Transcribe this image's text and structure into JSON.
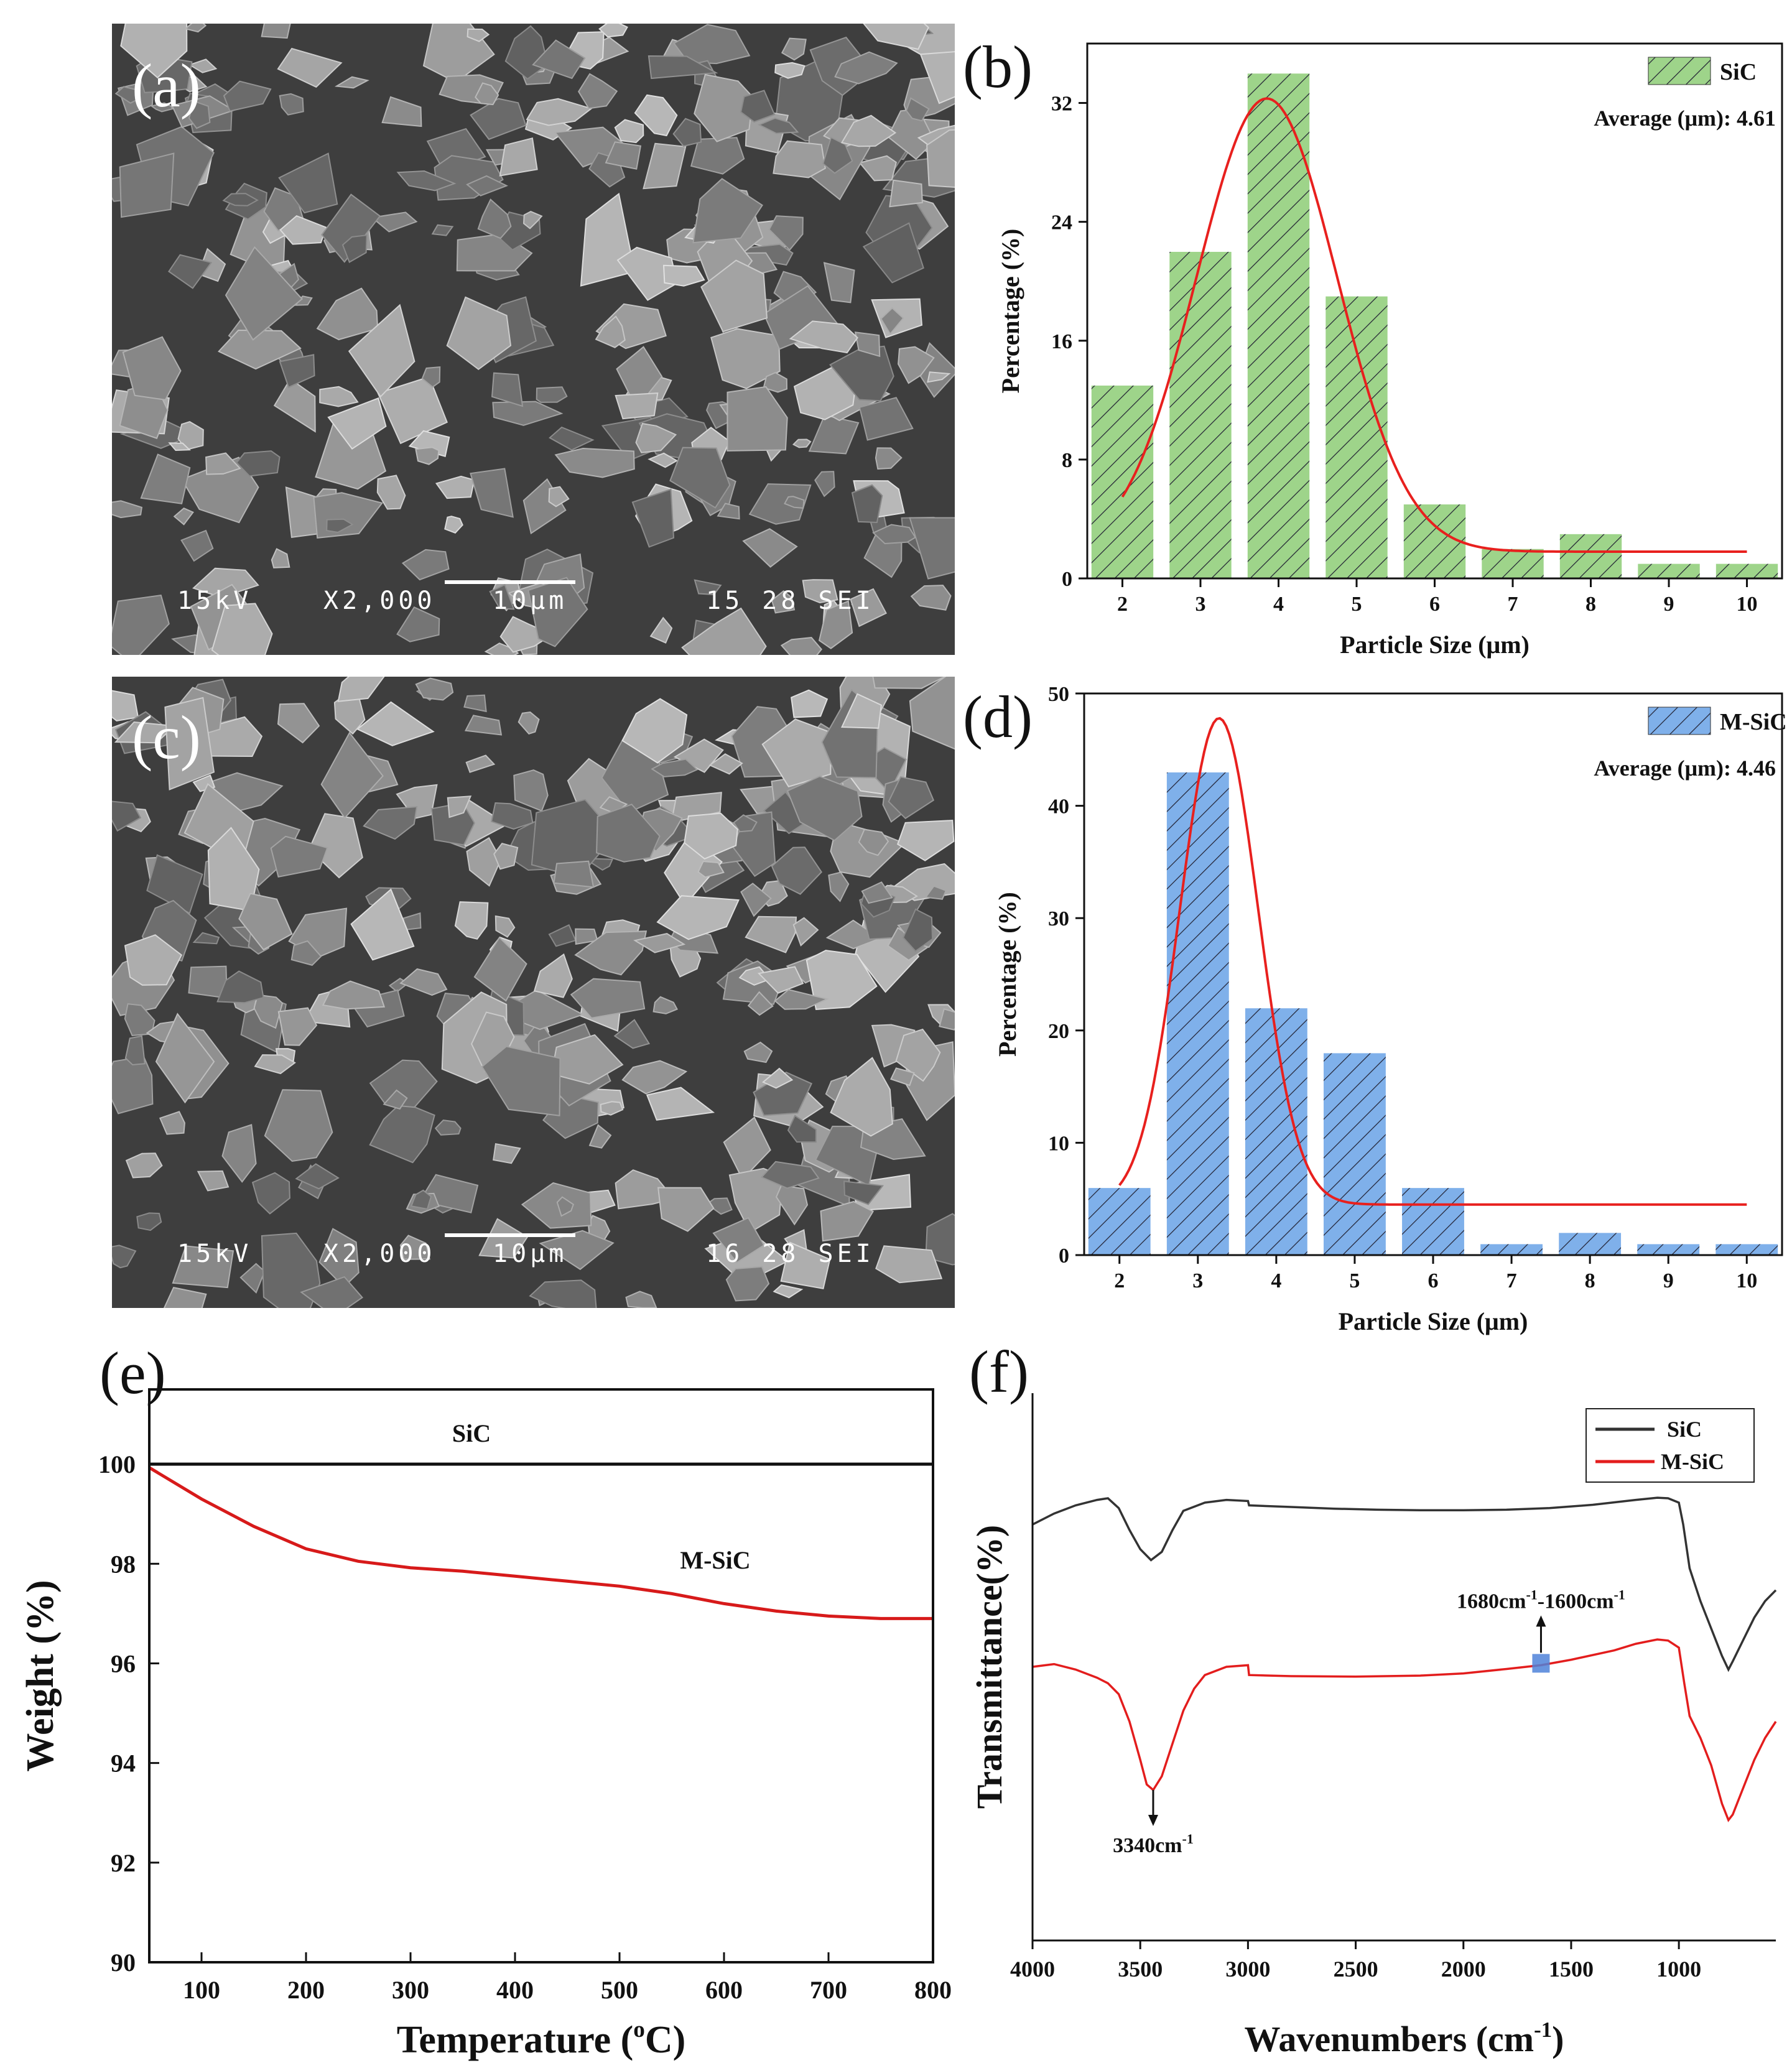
{
  "panels": {
    "a": {
      "label": "(a)",
      "voltage": "15kV",
      "magnification": "X2,000",
      "scale_bar": "10μm",
      "info": "15 28 SEI"
    },
    "c": {
      "label": "(c)",
      "voltage": "15kV",
      "magnification": "X2,000",
      "scale_bar": "10μm",
      "info": "16 28 SEI"
    }
  },
  "chart_data": [
    {
      "id": "b",
      "panel_label": "(b)",
      "type": "bar",
      "categories": [
        "2",
        "3",
        "4",
        "5",
        "6",
        "7",
        "8",
        "9",
        "10"
      ],
      "x": [
        2,
        3,
        4,
        5,
        6,
        7,
        8,
        9,
        10
      ],
      "values": [
        13,
        22,
        34,
        19,
        5,
        2,
        3,
        1,
        1
      ],
      "series_name": "SiC",
      "annotation": "Average (μm): 4.61",
      "xlabel": "Particle Size (μm)",
      "ylabel": "Percentage (%)",
      "ylim": [
        0,
        36
      ],
      "yticks": [
        0,
        8,
        16,
        24,
        32
      ],
      "fit": {
        "type": "gaussian",
        "y0": 1.8,
        "A": 30.5,
        "xc": 3.85,
        "sigma": 0.9,
        "x_from": 2,
        "x_to": 10
      },
      "bar_color": "#9ed48a",
      "fit_color": "#e8201e"
    },
    {
      "id": "d",
      "panel_label": "(d)",
      "type": "bar",
      "categories": [
        "2",
        "3",
        "4",
        "5",
        "6",
        "7",
        "8",
        "9",
        "10"
      ],
      "x": [
        2,
        3,
        4,
        5,
        6,
        7,
        8,
        9,
        10
      ],
      "values": [
        6,
        43,
        22,
        18,
        6,
        1,
        2,
        1,
        1
      ],
      "series_name": "M-SiC",
      "annotation": "Average (μm): 4.46",
      "xlabel": "Particle Size (μm)",
      "ylabel": "Percentage (%)",
      "ylim": [
        0,
        50
      ],
      "yticks": [
        0,
        10,
        20,
        30,
        40,
        50
      ],
      "fit": {
        "type": "gaussian",
        "y0": 4.5,
        "A": 43.3,
        "xc": 3.27,
        "sigma": 0.5,
        "x_from": 2,
        "x_to": 10
      },
      "bar_color": "#7fb0ea",
      "fit_color": "#e8201e"
    },
    {
      "id": "e",
      "panel_label": "(e)",
      "type": "line",
      "xlabel": "Temperature (°C)",
      "xlabel_main": "Temperature (",
      "xlabel_sup": "o",
      "xlabel_tail": "C)",
      "ylabel": "Weight (%)",
      "xlim": [
        50,
        800
      ],
      "ylim": [
        90,
        101.5
      ],
      "xticks": [
        100,
        200,
        300,
        400,
        500,
        600,
        700,
        800
      ],
      "yticks": [
        90,
        92,
        94,
        96,
        98,
        100
      ],
      "series": [
        {
          "name": "SiC",
          "color": "#111111",
          "x": [
            50,
            800
          ],
          "y": [
            100,
            100
          ]
        },
        {
          "name": "M-SiC",
          "color": "#d71a1a",
          "x": [
            50,
            100,
            150,
            200,
            250,
            300,
            350,
            400,
            450,
            500,
            550,
            600,
            650,
            700,
            750,
            800
          ],
          "y": [
            99.93,
            99.3,
            98.75,
            98.3,
            98.05,
            97.92,
            97.85,
            97.75,
            97.65,
            97.55,
            97.4,
            97.2,
            97.05,
            96.95,
            96.9,
            96.9
          ]
        }
      ]
    },
    {
      "id": "f",
      "panel_label": "(f)",
      "type": "line",
      "xlabel": "Wavenumbers (cm⁻¹)",
      "xlabel_main": "Wavenumbers (cm",
      "xlabel_sup": "-1",
      "xlabel_tail": ")",
      "ylabel": "Transmittance(%)",
      "xlim": [
        4000,
        550
      ],
      "ylim": [
        0,
        100
      ],
      "xticks": [
        4000,
        3500,
        3000,
        2500,
        2000,
        1500,
        1000
      ],
      "annotations": [
        {
          "text": "3340cm",
          "sup": "-1",
          "x": 3440
        },
        {
          "text": "1680cm",
          "sup": "-1",
          "mid": "-1600cm",
          "sup2": "-1",
          "x": 1640
        }
      ],
      "series": [
        {
          "name": "SiC",
          "color": "#333333",
          "x": [
            4000,
            3900,
            3800,
            3700,
            3650,
            3600,
            3550,
            3500,
            3450,
            3400,
            3350,
            3300,
            3200,
            3100,
            3000,
            2995,
            2800,
            2600,
            2400,
            2200,
            2000,
            1800,
            1600,
            1400,
            1200,
            1100,
            1050,
            1000,
            980,
            950,
            900,
            850,
            800,
            770,
            750,
            700,
            650,
            600,
            550
          ],
          "y": [
            76,
            78,
            79.5,
            80.5,
            80.8,
            79,
            75,
            71.5,
            69.5,
            71,
            75,
            78.5,
            80,
            80.5,
            80.3,
            79.5,
            79.2,
            78.9,
            78.7,
            78.6,
            78.6,
            78.7,
            79,
            79.6,
            80.5,
            80.9,
            80.8,
            80,
            76,
            68,
            62,
            57,
            52,
            49.5,
            51,
            55,
            59,
            62,
            64
          ]
        },
        {
          "name": "M-SiC",
          "color": "#e31d1d",
          "x": [
            4000,
            3900,
            3800,
            3700,
            3650,
            3600,
            3550,
            3500,
            3470,
            3440,
            3400,
            3350,
            3300,
            3250,
            3200,
            3100,
            3000,
            2995,
            2800,
            2500,
            2200,
            2000,
            1800,
            1640,
            1500,
            1300,
            1200,
            1100,
            1050,
            1000,
            975,
            950,
            900,
            850,
            800,
            770,
            750,
            700,
            650,
            600,
            550
          ],
          "y": [
            50,
            50.5,
            49.5,
            48,
            47,
            45,
            40,
            33,
            28.5,
            27.5,
            30,
            36,
            42,
            46,
            48.5,
            50,
            50.3,
            48.5,
            48.3,
            48.2,
            48.4,
            48.8,
            49.6,
            50.3,
            51.3,
            53,
            54.2,
            55,
            54.8,
            53.5,
            47,
            41,
            37,
            32,
            25,
            22,
            23,
            28,
            33,
            37,
            40
          ]
        }
      ]
    }
  ]
}
